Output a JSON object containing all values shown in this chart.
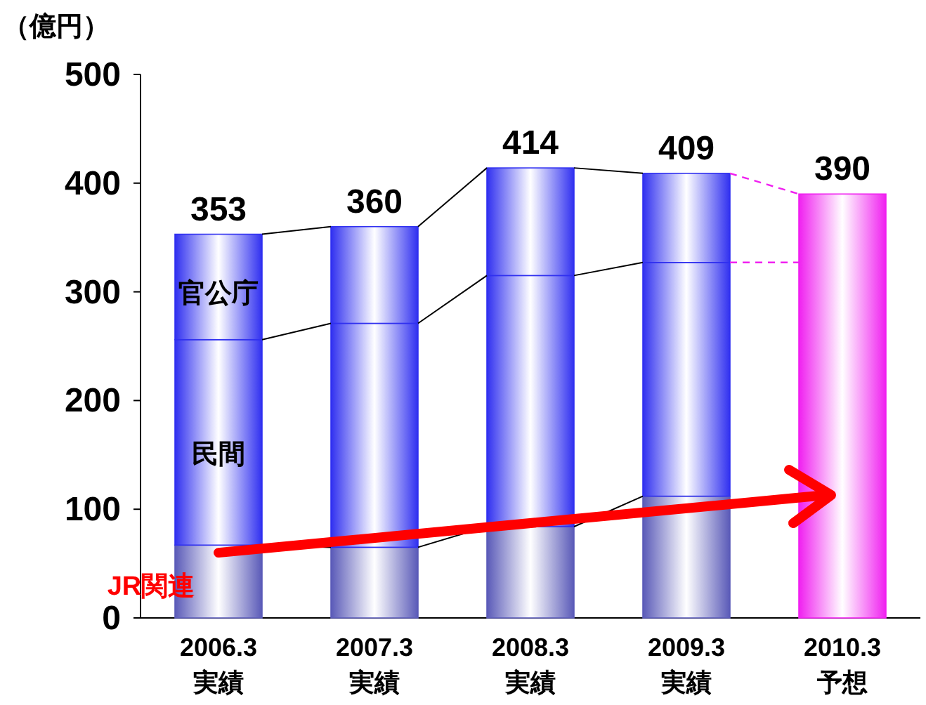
{
  "chart_data": {
    "type": "bar",
    "stacked": true,
    "ylabel": "（億円）",
    "categories": [
      "2006.3\n実績",
      "2007.3\n実績",
      "2008.3\n実績",
      "2009.3\n実績",
      "2010.3\n予想"
    ],
    "series": [
      {
        "name": "JR関連",
        "color": "#5a5ab8",
        "values": [
          67,
          65,
          84,
          112,
          null
        ]
      },
      {
        "name": "民間",
        "color": "#3030f0",
        "values": [
          189,
          206,
          231,
          215,
          null
        ]
      },
      {
        "name": "官公庁",
        "color": "#3030f0",
        "values": [
          97,
          89,
          99,
          82,
          null
        ]
      },
      {
        "color": "#f020f0",
        "values": [
          null,
          null,
          null,
          null,
          390
        ]
      }
    ],
    "totals": [
      "353",
      "360",
      "414",
      "409",
      "390"
    ],
    "ref_lines": [
      {
        "axis": "y",
        "value": 327,
        "color": "#f020f0",
        "line_style": "dashed"
      }
    ],
    "ylim": [
      0,
      500
    ],
    "yticks": [
      0,
      100,
      200,
      300,
      400,
      500
    ]
  }
}
